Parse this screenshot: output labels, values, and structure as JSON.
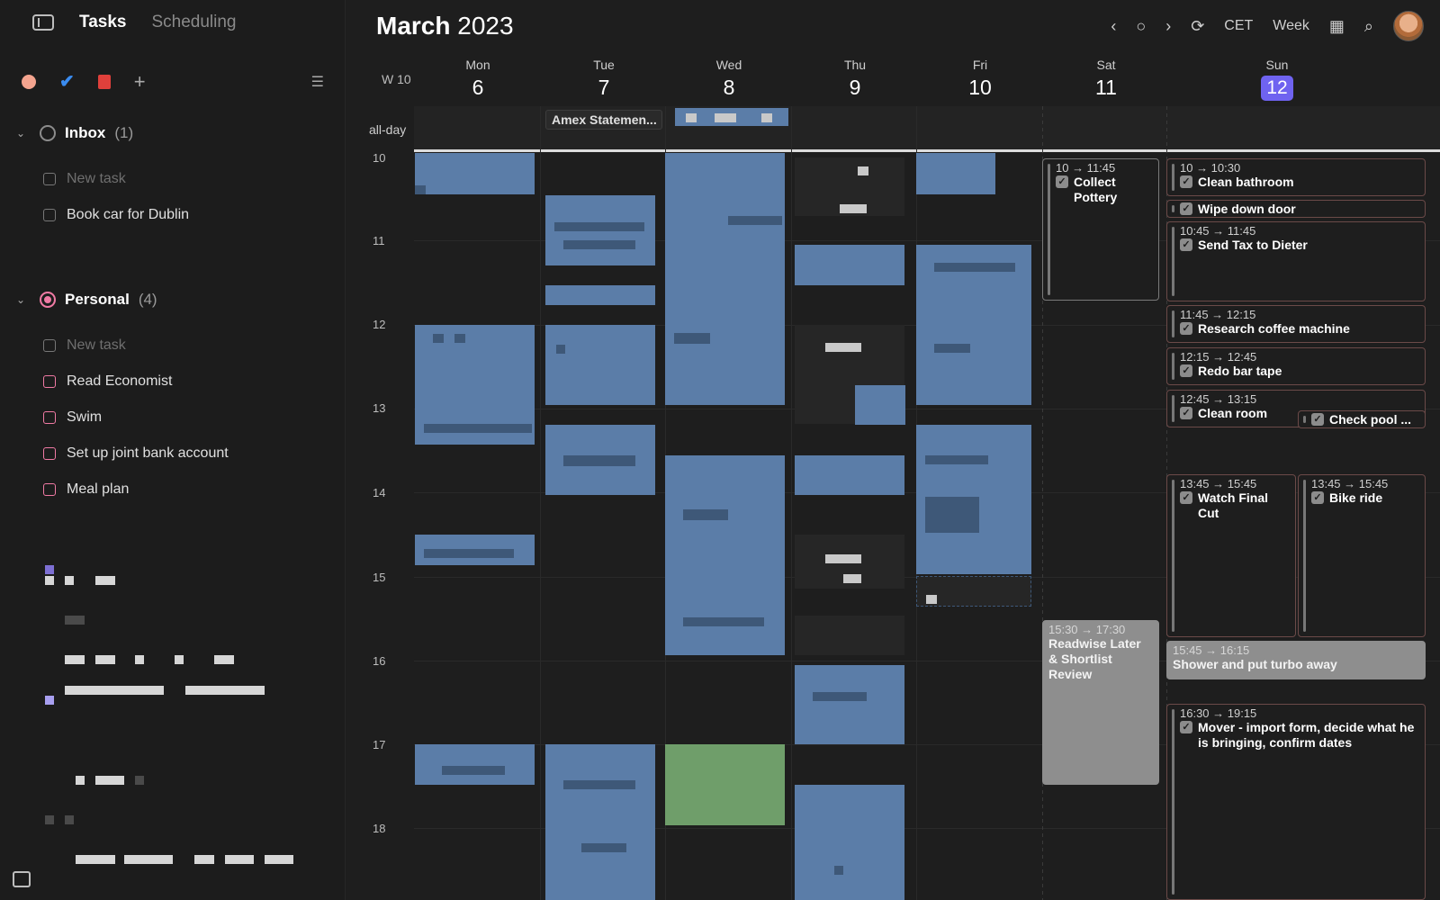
{
  "sidebar": {
    "tabs": [
      {
        "label": "Tasks"
      },
      {
        "label": "Scheduling"
      }
    ],
    "groups": [
      {
        "name": "Inbox",
        "count": "(1)",
        "new_task_placeholder": "New task",
        "tasks": [
          "Book car for Dublin"
        ]
      },
      {
        "name": "Personal",
        "count": "(4)",
        "new_task_placeholder": "New task",
        "tasks": [
          "Read Economist",
          "Swim",
          "Set up joint bank account",
          "Meal plan"
        ]
      }
    ]
  },
  "calendar": {
    "month": "March",
    "year": "2023",
    "timezone": "CET",
    "view": "Week",
    "week_label": "W 10",
    "allday_label": "all-day",
    "days": [
      {
        "name": "Mon",
        "num": "6"
      },
      {
        "name": "Tue",
        "num": "7"
      },
      {
        "name": "Wed",
        "num": "8"
      },
      {
        "name": "Thu",
        "num": "9"
      },
      {
        "name": "Fri",
        "num": "10"
      },
      {
        "name": "Sat",
        "num": "11"
      },
      {
        "name": "Sun",
        "num": "12",
        "today": true
      }
    ],
    "hours": [
      "10",
      "11",
      "12",
      "13",
      "14",
      "15",
      "16",
      "17",
      "18"
    ],
    "allday_event": "Amex Statemen...",
    "sat_events": [
      {
        "time": "10 → 11:45",
        "title": "Collect Pottery",
        "checked": true
      },
      {
        "time": "15:30 → 17:30",
        "title": "Readwise Later & Shortlist Review",
        "checked": false,
        "style": "gray"
      }
    ],
    "sun_events": [
      {
        "time": "10 → 10:30",
        "title": "Clean bathroom"
      },
      {
        "time": "",
        "title": "Wipe down door"
      },
      {
        "time": "10:45 → 11:45",
        "title": "Send Tax to Dieter"
      },
      {
        "time": "11:45 → 12:15",
        "title": "Research coffee machine"
      },
      {
        "time": "12:15 → 12:45",
        "title": "Redo bar tape"
      },
      {
        "time": "12:45 → 13:15",
        "title": "Clean room"
      },
      {
        "time": "",
        "title": "Check pool ..."
      },
      {
        "time": "13:45 → 15:45",
        "title": "Watch Final Cut"
      },
      {
        "time": "13:45 → 15:45",
        "title": "Bike ride"
      },
      {
        "time": "15:45 → 16:15",
        "title": "Shower and put turbo away",
        "style": "gray"
      },
      {
        "time": "16:30 → 19:15",
        "title": "Mover - import form, decide what he is bringing, confirm dates"
      }
    ],
    "colors": {
      "event_blue": "#5b7da8",
      "event_green": "#6f9e6a",
      "today": "#6f63f0",
      "task_border": "#6b4a48"
    },
    "icons": [
      "prev-icon",
      "today-circle-icon",
      "next-icon",
      "refresh-icon",
      "calendar-icon",
      "search-icon"
    ]
  }
}
